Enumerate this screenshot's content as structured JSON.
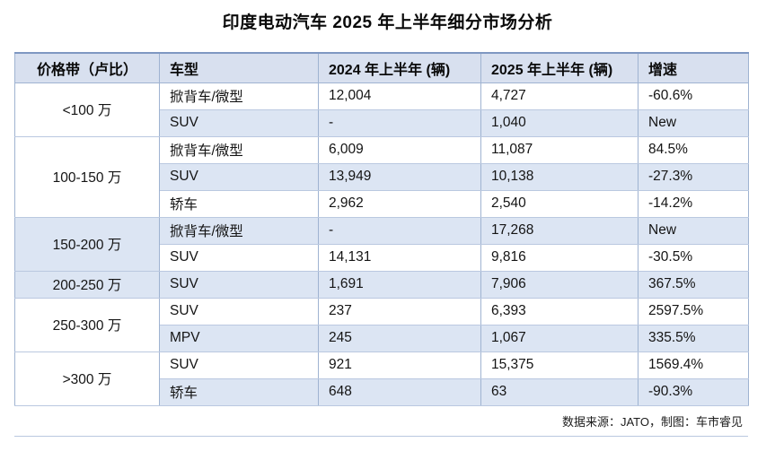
{
  "title": "印度电动汽车 2025 年上半年细分市场分析",
  "table": {
    "headers": [
      "价格带（卢比）",
      "车型",
      "2024 年上半年 (辆)",
      "2025 年上半年 (辆)",
      "增速"
    ],
    "groups": [
      {
        "price_band": "<100 万",
        "rows": [
          {
            "vehicle": "掀背车/微型",
            "h1_2024": "12,004",
            "h1_2025": "4,727",
            "growth": "-60.6%"
          },
          {
            "vehicle": "SUV",
            "h1_2024": "-",
            "h1_2025": "1,040",
            "growth": "New"
          }
        ]
      },
      {
        "price_band": "100-150 万",
        "rows": [
          {
            "vehicle": "掀背车/微型",
            "h1_2024": "6,009",
            "h1_2025": "11,087",
            "growth": "84.5%"
          },
          {
            "vehicle": "SUV",
            "h1_2024": "13,949",
            "h1_2025": "10,138",
            "growth": "-27.3%"
          },
          {
            "vehicle": "轿车",
            "h1_2024": "2,962",
            "h1_2025": "2,540",
            "growth": "-14.2%"
          }
        ]
      },
      {
        "price_band": "150-200 万",
        "rows": [
          {
            "vehicle": "掀背车/微型",
            "h1_2024": "-",
            "h1_2025": "17,268",
            "growth": "New"
          },
          {
            "vehicle": "SUV",
            "h1_2024": "14,131",
            "h1_2025": "9,816",
            "growth": "-30.5%"
          }
        ]
      },
      {
        "price_band": "200-250 万",
        "rows": [
          {
            "vehicle": "SUV",
            "h1_2024": "1,691",
            "h1_2025": "7,906",
            "growth": "367.5%"
          }
        ]
      },
      {
        "price_band": "250-300 万",
        "rows": [
          {
            "vehicle": "SUV",
            "h1_2024": "237",
            "h1_2025": "6,393",
            "growth": "2597.5%"
          },
          {
            "vehicle": "MPV",
            "h1_2024": "245",
            "h1_2025": "1,067",
            "growth": "335.5%"
          }
        ]
      },
      {
        "price_band": ">300 万",
        "rows": [
          {
            "vehicle": "SUV",
            "h1_2024": "921",
            "h1_2025": "15,375",
            "growth": "1569.4%"
          },
          {
            "vehicle": "轿车",
            "h1_2024": "648",
            "h1_2025": "63",
            "growth": "-90.3%"
          }
        ]
      }
    ]
  },
  "footer": {
    "source": "数据来源：JATO，制图：车市睿见"
  },
  "colors": {
    "header_bg": "#d8e0ef",
    "band_bg": "#dce5f3",
    "border_vertical": "#9fb3d1",
    "border_horizontal": "#bac8e0",
    "border_top": "#7e97c2"
  },
  "chart_data": {
    "type": "table",
    "title": "印度电动汽车 2025 年上半年细分市场分析",
    "columns": [
      "价格带（卢比）",
      "车型",
      "2024 年上半年 (辆)",
      "2025 年上半年 (辆)",
      "增速"
    ],
    "rows": [
      [
        "<100 万",
        "掀背车/微型",
        "12,004",
        "4,727",
        "-60.6%"
      ],
      [
        "<100 万",
        "SUV",
        "-",
        "1,040",
        "New"
      ],
      [
        "100-150 万",
        "掀背车/微型",
        "6,009",
        "11,087",
        "84.5%"
      ],
      [
        "100-150 万",
        "SUV",
        "13,949",
        "10,138",
        "-27.3%"
      ],
      [
        "100-150 万",
        "轿车",
        "2,962",
        "2,540",
        "-14.2%"
      ],
      [
        "150-200 万",
        "掀背车/微型",
        "-",
        "17,268",
        "New"
      ],
      [
        "150-200 万",
        "SUV",
        "14,131",
        "9,816",
        "-30.5%"
      ],
      [
        "200-250 万",
        "SUV",
        "1,691",
        "7,906",
        "367.5%"
      ],
      [
        "250-300 万",
        "SUV",
        "237",
        "6,393",
        "2597.5%"
      ],
      [
        "250-300 万",
        "MPV",
        "245",
        "1,067",
        "335.5%"
      ],
      [
        ">300 万",
        "SUV",
        "921",
        "15,375",
        "1569.4%"
      ],
      [
        ">300 万",
        "轿车",
        "648",
        "63",
        "-90.3%"
      ]
    ],
    "source_note": "数据来源：JATO，制图：车市睿见"
  }
}
